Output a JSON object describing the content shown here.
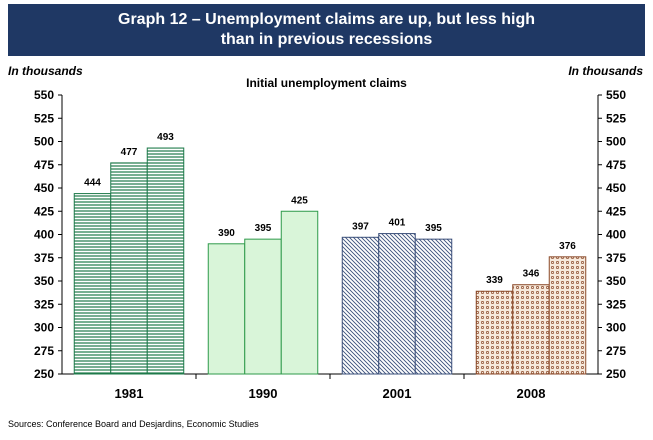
{
  "header": {
    "title_line1": "Graph 12 – Unemployment claims are up, but less high",
    "title_line2": "than in previous recessions"
  },
  "chart_data": {
    "type": "bar",
    "title": "Initial unemployment claims",
    "ylabel_left": "In thousands",
    "ylabel_right": "In thousands",
    "categories": [
      "1981",
      "1990",
      "2001",
      "2008"
    ],
    "groups": [
      {
        "category": "1981",
        "values": [
          444,
          477,
          493
        ],
        "color": "#1e7a4a",
        "fill": "#ffffff",
        "pattern": "horizontal-lines"
      },
      {
        "category": "1990",
        "values": [
          390,
          395,
          425
        ],
        "color": "#2e9a4a",
        "fill": "#d9f5d9",
        "pattern": "solid"
      },
      {
        "category": "2001",
        "values": [
          397,
          401,
          395
        ],
        "color": "#3a4f7a",
        "fill": "#ffffff",
        "pattern": "diagonal-lines"
      },
      {
        "category": "2008",
        "values": [
          339,
          346,
          376
        ],
        "color": "#8b4a2a",
        "fill": "#f6e9dc",
        "pattern": "dots"
      }
    ],
    "ylim": [
      250,
      550
    ],
    "yticks": [
      250,
      275,
      300,
      325,
      350,
      375,
      400,
      425,
      450,
      475,
      500,
      525,
      550
    ],
    "grid": false,
    "legend": "none"
  },
  "footer": {
    "sources": "Sources: Conference Board and Desjardins, Economic Studies"
  }
}
